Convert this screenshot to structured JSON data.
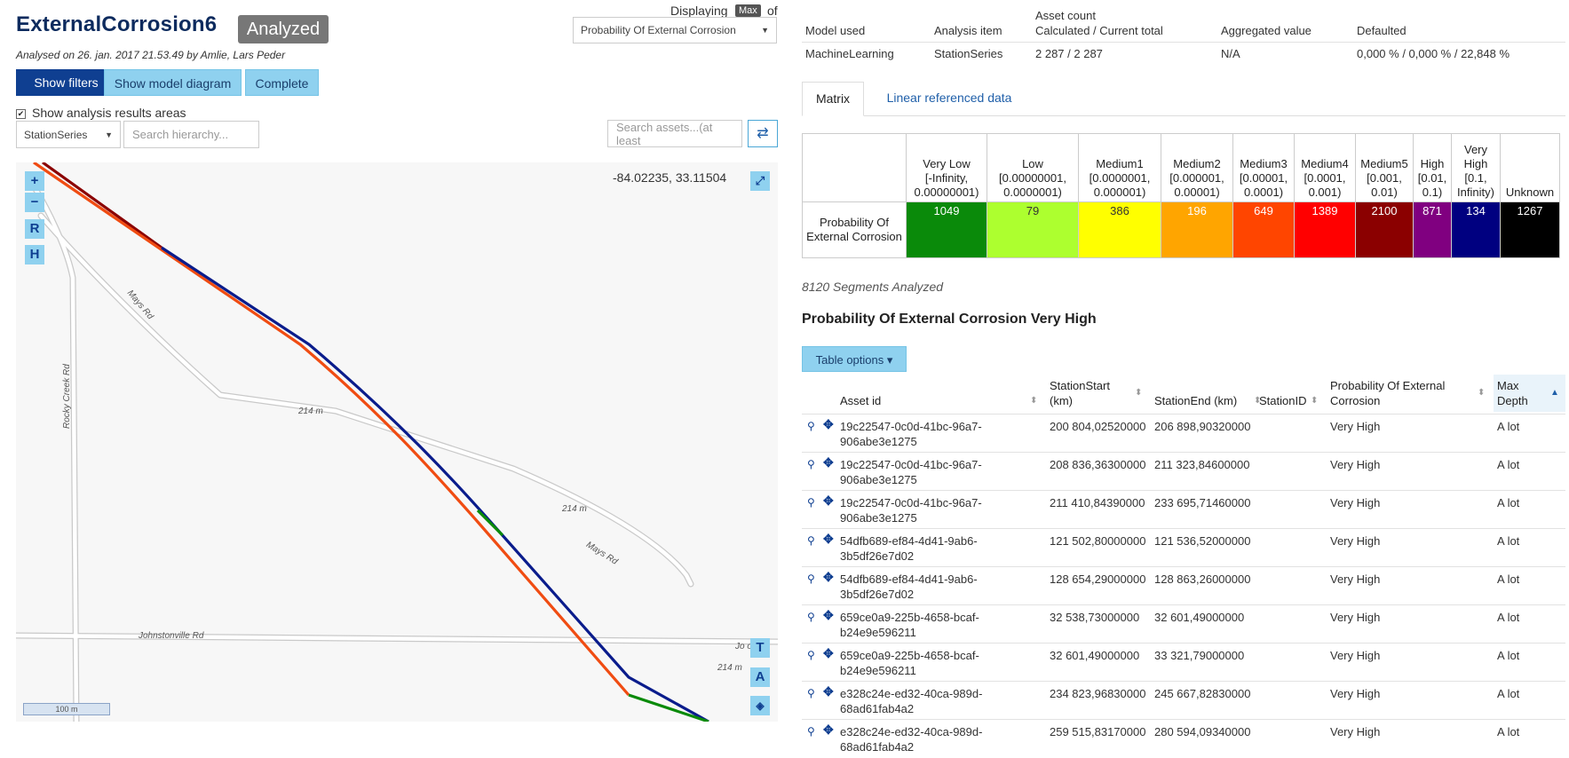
{
  "header": {
    "title": "ExternalCorrosion6",
    "status_badge": "Analyzed",
    "subtitle": "Analysed on 26. jan. 2017 21.53.49 by Amlie, Lars Peder",
    "displaying_label": "Displaying",
    "displaying_mode": "Max",
    "of_label": "of",
    "display_select": "Probability Of External Corrosion"
  },
  "buttons": {
    "show_filters": "Show filters",
    "show_model_diagram": "Show model diagram",
    "complete": "Complete"
  },
  "options": {
    "show_results_areas": "Show analysis results areas",
    "checkbox_mark": "✔"
  },
  "filters": {
    "series_select": "StationSeries",
    "hierarchy_placeholder": "Search hierarchy...",
    "assets_placeholder": "Search assets...(at least"
  },
  "map": {
    "coords": "-84.02235, 33.11504",
    "zoom_in": "+",
    "zoom_out": "−",
    "btn_r": "R",
    "btn_h": "H",
    "btn_t": "T",
    "btn_a": "A",
    "scale": "100 m",
    "roads": {
      "mays_rd_1": "Mays Rd",
      "mays_rd_2": "Mays Rd",
      "rocky_creek_rd": "Rocky Creek Rd",
      "johnstonville_rd": "Johnstonville Rd",
      "johnston_partial": "Jo      on",
      "elev_1": "214 m",
      "elev_2": "214 m",
      "elev_3": "214 m"
    },
    "colors": {
      "pipe_orange": "#f04c12",
      "pipe_navy": "#0a1c8c",
      "pipe_green": "#0a8a0a",
      "pipe_darkred": "#8b0000"
    }
  },
  "summary": {
    "headers": [
      "Model used",
      "Analysis item",
      "Asset count",
      "Aggregated value",
      "Defaulted"
    ],
    "asset_count_sub": "Calculated / Current total",
    "values": [
      "MachineLearning",
      "StationSeries",
      "2 287 / 2 287",
      "N/A",
      "0,000 % / 0,000 % / 22,848 %"
    ]
  },
  "tabs": [
    "Matrix",
    "Linear referenced data"
  ],
  "matrix": {
    "row_label": "Probability Of External Corrosion",
    "columns": [
      {
        "name": "Very Low",
        "range": "[-Infinity, 0.00000001)",
        "value": "1049",
        "color": "#0a8a0a",
        "text": "#ffffff"
      },
      {
        "name": "Low",
        "range": "[0.00000001, 0.0000001)",
        "value": "79",
        "color": "#adff2f",
        "text": "#333333"
      },
      {
        "name": "Medium1",
        "range": "[0.0000001, 0.000001)",
        "value": "386",
        "color": "#ffff00",
        "text": "#333333"
      },
      {
        "name": "Medium2",
        "range": "[0.000001, 0.00001)",
        "value": "196",
        "color": "#ffa500",
        "text": "#ffffff"
      },
      {
        "name": "Medium3",
        "range": "[0.00001, 0.0001)",
        "value": "649",
        "color": "#ff4500",
        "text": "#ffffff"
      },
      {
        "name": "Medium4",
        "range": "[0.0001, 0.001)",
        "value": "1389",
        "color": "#ff0000",
        "text": "#ffffff"
      },
      {
        "name": "Medium5",
        "range": "[0.001, 0.01)",
        "value": "2100",
        "color": "#8b0000",
        "text": "#ffffff"
      },
      {
        "name": "High",
        "range": "[0.01, 0.1)",
        "value": "871",
        "color": "#800080",
        "text": "#ffffff"
      },
      {
        "name": "Very High",
        "range": "[0.1, Infinity)",
        "value": "134",
        "color": "#000080",
        "text": "#ffffff"
      },
      {
        "name": "Unknown",
        "range": "",
        "value": "1267",
        "color": "#000000",
        "text": "#ffffff"
      }
    ]
  },
  "segments_text": "8120 Segments Analyzed",
  "section_title": "Probability Of External Corrosion Very High",
  "table_options": "Table options ▾",
  "data_table": {
    "headers": {
      "asset_id": "Asset id",
      "station_start": "StationStart (km)",
      "station_end": "StationEnd (km)",
      "station_id": "StationID",
      "probability": "Probability Of External Corrosion",
      "max_depth": "Max Depth"
    },
    "rows": [
      {
        "asset": "19c22547-0c0d-41bc-96a7-906abe3e1275",
        "start": "200 804,02520000",
        "end": "206 898,90320000",
        "prob": "Very High",
        "depth": "A lot"
      },
      {
        "asset": "19c22547-0c0d-41bc-96a7-906abe3e1275",
        "start": "208 836,36300000",
        "end": "211 323,84600000",
        "prob": "Very High",
        "depth": "A lot"
      },
      {
        "asset": "19c22547-0c0d-41bc-96a7-906abe3e1275",
        "start": "211 410,84390000",
        "end": "233 695,71460000",
        "prob": "Very High",
        "depth": "A lot"
      },
      {
        "asset": "54dfb689-ef84-4d41-9ab6-3b5df26e7d02",
        "start": "121 502,80000000",
        "end": "121 536,52000000",
        "prob": "Very High",
        "depth": "A lot"
      },
      {
        "asset": "54dfb689-ef84-4d41-9ab6-3b5df26e7d02",
        "start": "128 654,29000000",
        "end": "128 863,26000000",
        "prob": "Very High",
        "depth": "A lot"
      },
      {
        "asset": "659ce0a9-225b-4658-bcaf-b24e9e596211",
        "start": "32 538,73000000",
        "end": "32 601,49000000",
        "prob": "Very High",
        "depth": "A lot"
      },
      {
        "asset": "659ce0a9-225b-4658-bcaf-b24e9e596211",
        "start": "32 601,49000000",
        "end": "33 321,79000000",
        "prob": "Very High",
        "depth": "A lot"
      },
      {
        "asset": "e328c24e-ed32-40ca-989d-68ad61fab4a2",
        "start": "234 823,96830000",
        "end": "245 667,82830000",
        "prob": "Very High",
        "depth": "A lot"
      },
      {
        "asset": "e328c24e-ed32-40ca-989d-68ad61fab4a2",
        "start": "259 515,83170000",
        "end": "280 594,09340000",
        "prob": "Very High",
        "depth": "A lot"
      }
    ]
  }
}
